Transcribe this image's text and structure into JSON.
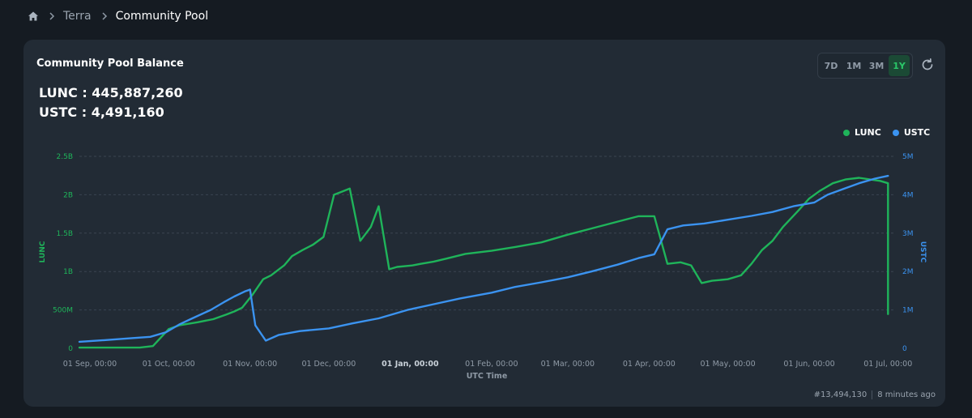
{
  "breadcrumb": {
    "items": [
      {
        "label": "Terra"
      },
      {
        "label": "Community Pool"
      }
    ]
  },
  "card": {
    "title": "Community Pool Balance",
    "balances": [
      {
        "label": "LUNC",
        "value": "445,887,260"
      },
      {
        "label": "USTC",
        "value": "4,491,160"
      }
    ],
    "ranges": [
      "7D",
      "1M",
      "3M",
      "1Y"
    ],
    "active_range": "1Y",
    "footer": {
      "block": "#13,494,130",
      "updated": "8 minutes ago"
    }
  },
  "colors": {
    "lunc": "#1fb45a",
    "ustc": "#3b93f0",
    "grid": "#3a4451",
    "axis_text": "#8f9aa6"
  },
  "chart_data": {
    "type": "line",
    "x_axis": {
      "title": "UTC Time",
      "ticks": [
        "01 Sep, 00:00",
        "01 Oct, 00:00",
        "01 Nov, 00:00",
        "01 Dec, 00:00",
        "01 Jan, 00:00",
        "01 Feb, 00:00",
        "01 Mar, 00:00",
        "01 Apr, 00:00",
        "01 May, 00:00",
        "01 Jun, 00:00",
        "01 Jul, 00:00"
      ],
      "bold_tick": "01 Jan, 00:00"
    },
    "y_left": {
      "title": "LUNC",
      "ticks": [
        "0",
        "500M",
        "1B",
        "1.5B",
        "2B",
        "2.5B"
      ],
      "range": [
        0,
        2500000000
      ]
    },
    "y_right": {
      "title": "USTC",
      "ticks": [
        "0",
        "1M",
        "2M",
        "3M",
        "4M",
        "5M"
      ],
      "range": [
        0,
        5000000
      ]
    },
    "legend": [
      "LUNC",
      "USTC"
    ],
    "legend_position": "top-right",
    "grid": true,
    "series": [
      {
        "name": "LUNC",
        "axis": "left",
        "x": [
          "2023-08-28",
          "2023-09-08",
          "2023-09-20",
          "2023-09-25",
          "2023-10-01",
          "2023-10-05",
          "2023-10-12",
          "2023-10-18",
          "2023-10-23",
          "2023-10-26",
          "2023-10-29",
          "2023-11-02",
          "2023-11-06",
          "2023-11-09",
          "2023-11-14",
          "2023-11-17",
          "2023-11-21",
          "2023-11-25",
          "2023-11-29",
          "2023-12-03",
          "2023-12-06",
          "2023-12-09",
          "2023-12-13",
          "2023-12-17",
          "2023-12-20",
          "2023-12-24",
          "2023-12-27",
          "2024-01-02",
          "2024-01-05",
          "2024-01-10",
          "2024-01-15",
          "2024-01-22",
          "2024-02-01",
          "2024-02-10",
          "2024-02-20",
          "2024-03-01",
          "2024-03-10",
          "2024-03-20",
          "2024-03-28",
          "2024-04-03",
          "2024-04-08",
          "2024-04-13",
          "2024-04-17",
          "2024-04-21",
          "2024-04-25",
          "2024-05-01",
          "2024-05-06",
          "2024-05-10",
          "2024-05-14",
          "2024-05-18",
          "2024-05-22",
          "2024-05-28",
          "2024-06-01",
          "2024-06-05",
          "2024-06-10",
          "2024-06-15",
          "2024-06-20",
          "2024-06-24",
          "2024-06-28",
          "2024-07-01",
          "2024-07-01"
        ],
        "y": [
          10000000,
          10000000,
          10000000,
          30000000,
          250000000,
          300000000,
          340000000,
          380000000,
          440000000,
          480000000,
          530000000,
          700000000,
          900000000,
          950000000,
          1080000000,
          1200000000,
          1280000000,
          1350000000,
          1450000000,
          2000000000,
          2040000000,
          2080000000,
          1400000000,
          1580000000,
          1850000000,
          1030000000,
          1060000000,
          1080000000,
          1100000000,
          1130000000,
          1170000000,
          1230000000,
          1270000000,
          1320000000,
          1380000000,
          1480000000,
          1560000000,
          1650000000,
          1720000000,
          1720000000,
          1100000000,
          1120000000,
          1080000000,
          850000000,
          880000000,
          900000000,
          950000000,
          1100000000,
          1280000000,
          1400000000,
          1580000000,
          1800000000,
          1950000000,
          2050000000,
          2150000000,
          2200000000,
          2220000000,
          2200000000,
          2180000000,
          2150000000,
          445887260
        ]
      },
      {
        "name": "USTC",
        "axis": "right",
        "x": [
          "2023-08-28",
          "2023-09-08",
          "2023-09-18",
          "2023-09-24",
          "2023-09-30",
          "2023-10-05",
          "2023-10-10",
          "2023-10-17",
          "2023-10-22",
          "2023-10-26",
          "2023-10-30",
          "2023-11-01",
          "2023-11-03",
          "2023-11-07",
          "2023-11-12",
          "2023-11-20",
          "2023-12-01",
          "2023-12-10",
          "2023-12-20",
          "2023-12-31",
          "2024-01-10",
          "2024-01-20",
          "2024-02-01",
          "2024-02-10",
          "2024-02-20",
          "2024-03-01",
          "2024-03-10",
          "2024-03-20",
          "2024-03-28",
          "2024-04-03",
          "2024-04-08",
          "2024-04-14",
          "2024-04-22",
          "2024-05-01",
          "2024-05-10",
          "2024-05-18",
          "2024-05-26",
          "2024-06-03",
          "2024-06-08",
          "2024-06-14",
          "2024-06-20",
          "2024-06-26",
          "2024-07-01"
        ],
        "y": [
          170000,
          220000,
          270000,
          300000,
          420000,
          620000,
          780000,
          1000000,
          1200000,
          1350000,
          1480000,
          1530000,
          600000,
          200000,
          350000,
          450000,
          520000,
          650000,
          780000,
          1000000,
          1150000,
          1300000,
          1450000,
          1600000,
          1720000,
          1850000,
          2000000,
          2180000,
          2350000,
          2450000,
          3100000,
          3200000,
          3250000,
          3350000,
          3450000,
          3550000,
          3700000,
          3800000,
          4000000,
          4150000,
          4300000,
          4420000,
          4491160
        ]
      }
    ]
  }
}
